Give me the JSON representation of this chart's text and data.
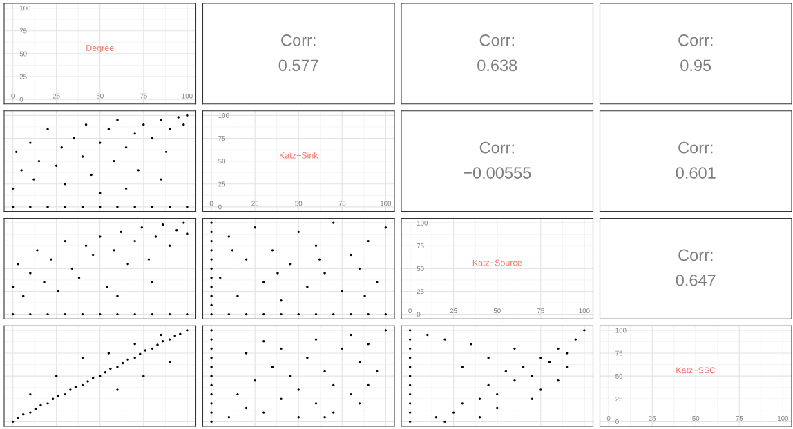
{
  "chart_data": [
    {
      "type": "scatter",
      "annotations": [
        "Degree"
      ],
      "xlim": [
        -5,
        105
      ],
      "ylim": [
        -5,
        105
      ],
      "xticks": [
        0,
        25,
        50,
        75,
        100
      ],
      "yticks": [
        0,
        25,
        50,
        75,
        100
      ],
      "grid": true
    },
    {
      "type": "other",
      "annotations": [
        "Corr:",
        "0.577"
      ]
    },
    {
      "type": "other",
      "annotations": [
        "Corr:",
        "0.638"
      ]
    },
    {
      "type": "other",
      "annotations": [
        "Corr:",
        "0.95"
      ]
    },
    {
      "type": "scatter",
      "xlim": [
        -5,
        105
      ],
      "ylim": [
        -5,
        105
      ],
      "xticks": [
        0,
        25,
        50,
        75,
        100
      ],
      "yticks": [
        0,
        25,
        50,
        75,
        100
      ],
      "tick_labels": false,
      "grid": true,
      "marker": "circle",
      "series": [
        {
          "color": "#000000",
          "x": [
            0,
            10,
            20,
            30,
            40,
            50,
            60,
            70,
            80,
            90,
            100,
            0,
            2,
            5,
            10,
            12,
            15,
            20,
            25,
            28,
            30,
            35,
            40,
            42,
            45,
            50,
            55,
            58,
            60,
            65,
            70,
            72,
            75,
            80,
            85,
            88,
            90,
            95,
            98,
            100,
            65,
            85,
            50
          ],
          "values": [
            0,
            0,
            0,
            0,
            0,
            0,
            0,
            0,
            0,
            0,
            0,
            20,
            60,
            40,
            70,
            30,
            50,
            85,
            45,
            65,
            25,
            75,
            55,
            90,
            35,
            70,
            85,
            50,
            95,
            65,
            80,
            40,
            90,
            75,
            95,
            60,
            85,
            98,
            90,
            100,
            20,
            30,
            15
          ]
        }
      ]
    },
    {
      "type": "scatter",
      "annotations": [
        "Katz−Sink"
      ],
      "xlim": [
        -5,
        105
      ],
      "ylim": [
        -5,
        105
      ],
      "xticks": [
        0,
        25,
        50,
        75,
        100
      ],
      "yticks": [
        0,
        25,
        50,
        75,
        100
      ],
      "grid": true
    },
    {
      "type": "other",
      "annotations": [
        "Corr:",
        "−0.00555"
      ]
    },
    {
      "type": "other",
      "annotations": [
        "Corr:",
        "0.601"
      ]
    },
    {
      "type": "scatter",
      "xlim": [
        -5,
        105
      ],
      "ylim": [
        -5,
        105
      ],
      "xticks": [
        0,
        25,
        50,
        75,
        100
      ],
      "yticks": [
        0,
        25,
        50,
        75,
        100
      ],
      "tick_labels": false,
      "grid": true,
      "marker": "circle",
      "series": [
        {
          "color": "#000000",
          "x": [
            0,
            10,
            20,
            30,
            40,
            50,
            60,
            70,
            80,
            90,
            100,
            0,
            3,
            6,
            10,
            14,
            18,
            22,
            26,
            30,
            34,
            38,
            42,
            46,
            50,
            54,
            58,
            62,
            66,
            70,
            74,
            78,
            82,
            86,
            90,
            94,
            98,
            100,
            60,
            80
          ],
          "values": [
            0,
            0,
            0,
            0,
            0,
            0,
            0,
            0,
            0,
            0,
            0,
            30,
            55,
            20,
            45,
            70,
            35,
            60,
            25,
            80,
            50,
            40,
            75,
            65,
            85,
            30,
            70,
            90,
            55,
            80,
            95,
            60,
            85,
            98,
            75,
            92,
            100,
            88,
            20,
            35
          ]
        }
      ]
    },
    {
      "type": "scatter",
      "xlim": [
        -5,
        105
      ],
      "ylim": [
        -5,
        105
      ],
      "xticks": [
        0,
        25,
        50,
        75,
        100
      ],
      "yticks": [
        0,
        25,
        50,
        75,
        100
      ],
      "tick_labels": false,
      "grid": true,
      "marker": "circle",
      "series": [
        {
          "color": "#000000",
          "x": [
            0,
            0,
            0,
            0,
            0,
            0,
            0,
            0,
            0,
            0,
            0,
            10,
            20,
            30,
            40,
            50,
            60,
            70,
            80,
            90,
            100,
            5,
            10,
            15,
            20,
            25,
            30,
            35,
            40,
            45,
            50,
            55,
            60,
            65,
            70,
            75,
            80,
            85,
            90,
            95,
            100,
            12,
            38,
            62,
            88
          ],
          "values": [
            0,
            10,
            20,
            30,
            40,
            50,
            60,
            70,
            80,
            90,
            100,
            0,
            0,
            0,
            0,
            0,
            0,
            0,
            0,
            0,
            0,
            40,
            85,
            20,
            60,
            95,
            35,
            70,
            15,
            55,
            90,
            30,
            75,
            45,
            100,
            25,
            65,
            50,
            80,
            35,
            95,
            70,
            45,
            60,
            20
          ]
        }
      ]
    },
    {
      "type": "scatter",
      "annotations": [
        "Katz−Source"
      ],
      "xlim": [
        -5,
        105
      ],
      "ylim": [
        -5,
        105
      ],
      "xticks": [
        0,
        25,
        50,
        75,
        100
      ],
      "yticks": [
        0,
        25,
        50,
        75,
        100
      ],
      "grid": true
    },
    {
      "type": "other",
      "annotations": [
        "Corr:",
        "0.647"
      ]
    },
    {
      "type": "scatter",
      "xlim": [
        -5,
        105
      ],
      "ylim": [
        -5,
        105
      ],
      "xticks": [
        0,
        25,
        50,
        75,
        100
      ],
      "yticks": [
        0,
        25,
        50,
        75,
        100
      ],
      "tick_labels": false,
      "grid": true,
      "marker": "circle",
      "series": [
        {
          "color": "#000000",
          "x": [
            0,
            3,
            6,
            10,
            13,
            16,
            20,
            23,
            26,
            30,
            33,
            36,
            40,
            43,
            46,
            50,
            53,
            56,
            60,
            63,
            66,
            70,
            73,
            76,
            80,
            83,
            86,
            90,
            93,
            96,
            100,
            10,
            25,
            40,
            55,
            70,
            85,
            60,
            75,
            90
          ],
          "values": [
            0,
            4,
            8,
            10,
            14,
            18,
            20,
            25,
            28,
            30,
            35,
            38,
            40,
            44,
            48,
            50,
            54,
            58,
            60,
            64,
            68,
            70,
            74,
            78,
            80,
            84,
            88,
            90,
            94,
            96,
            100,
            30,
            50,
            70,
            75,
            85,
            95,
            35,
            50,
            65
          ]
        }
      ]
    },
    {
      "type": "scatter",
      "xlim": [
        -5,
        105
      ],
      "ylim": [
        -5,
        105
      ],
      "xticks": [
        0,
        25,
        50,
        75,
        100
      ],
      "yticks": [
        0,
        25,
        50,
        75,
        100
      ],
      "tick_labels": false,
      "grid": true,
      "marker": "circle",
      "series": [
        {
          "color": "#000000",
          "x": [
            0,
            0,
            0,
            0,
            0,
            0,
            0,
            0,
            0,
            0,
            0,
            10,
            15,
            20,
            25,
            30,
            35,
            40,
            45,
            50,
            55,
            60,
            65,
            70,
            75,
            80,
            85,
            90,
            95,
            100,
            20,
            40,
            60,
            80,
            50,
            70,
            90,
            30,
            65,
            85
          ],
          "values": [
            0,
            10,
            20,
            30,
            40,
            50,
            60,
            70,
            80,
            90,
            100,
            5,
            30,
            15,
            45,
            10,
            60,
            25,
            50,
            35,
            70,
            20,
            55,
            40,
            80,
            30,
            65,
            85,
            55,
            100,
            75,
            80,
            90,
            95,
            5,
            10,
            40,
            88,
            5,
            20
          ]
        }
      ]
    },
    {
      "type": "scatter",
      "xlim": [
        -5,
        105
      ],
      "ylim": [
        -5,
        105
      ],
      "xticks": [
        0,
        25,
        50,
        75,
        100
      ],
      "yticks": [
        0,
        25,
        50,
        75,
        100
      ],
      "tick_labels": false,
      "grid": true,
      "marker": "circle",
      "series": [
        {
          "color": "#000000",
          "x": [
            0,
            0,
            0,
            0,
            0,
            0,
            0,
            0,
            0,
            0,
            0,
            10,
            15,
            20,
            25,
            30,
            35,
            40,
            45,
            50,
            55,
            60,
            65,
            70,
            75,
            80,
            85,
            90,
            95,
            100,
            30,
            45,
            60,
            75,
            90,
            20,
            50,
            70,
            85,
            40
          ],
          "values": [
            0,
            10,
            20,
            30,
            40,
            50,
            60,
            70,
            80,
            90,
            100,
            95,
            5,
            90,
            10,
            20,
            85,
            25,
            40,
            30,
            55,
            45,
            60,
            50,
            70,
            65,
            80,
            75,
            90,
            100,
            60,
            70,
            80,
            35,
            60,
            0,
            15,
            25,
            45,
            5
          ]
        }
      ]
    },
    {
      "type": "scatter",
      "annotations": [
        "Katz−SSC"
      ],
      "xlim": [
        -5,
        105
      ],
      "ylim": [
        -5,
        105
      ],
      "xticks": [
        0,
        25,
        50,
        75,
        100
      ],
      "yticks": [
        0,
        25,
        50,
        75,
        100
      ],
      "grid": true
    }
  ]
}
